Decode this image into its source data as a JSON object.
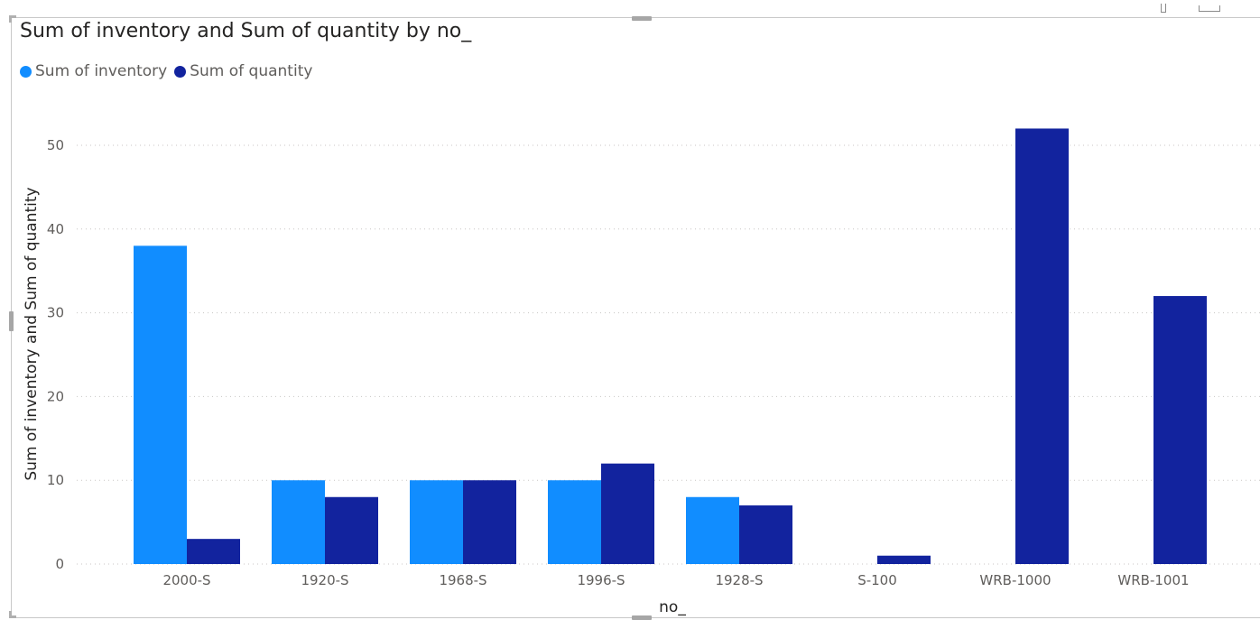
{
  "title": "Sum of inventory and Sum of quantity by no_",
  "legend": {
    "items": [
      {
        "label": "Sum of inventory",
        "color": "#118DFF"
      },
      {
        "label": "Sum of quantity",
        "color": "#12239E"
      }
    ]
  },
  "chart_data": {
    "type": "bar",
    "title": "Sum of inventory and Sum of quantity by no_",
    "xlabel": "no_",
    "ylabel": "Sum of inventory and Sum of quantity",
    "categories": [
      "2000-S",
      "1920-S",
      "1968-S",
      "1996-S",
      "1928-S",
      "S-100",
      "WRB-1000",
      "WRB-1001"
    ],
    "series": [
      {
        "name": "Sum of inventory",
        "color": "#118DFF",
        "values": [
          38,
          10,
          10,
          10,
          8,
          null,
          null,
          null
        ]
      },
      {
        "name": "Sum of quantity",
        "color": "#12239E",
        "values": [
          3,
          8,
          10,
          12,
          7,
          1,
          52,
          32
        ]
      }
    ],
    "yticks": [
      0,
      10,
      20,
      30,
      40,
      50
    ],
    "ylim": [
      0,
      57
    ],
    "grid": true,
    "legend_position": "top-left"
  }
}
